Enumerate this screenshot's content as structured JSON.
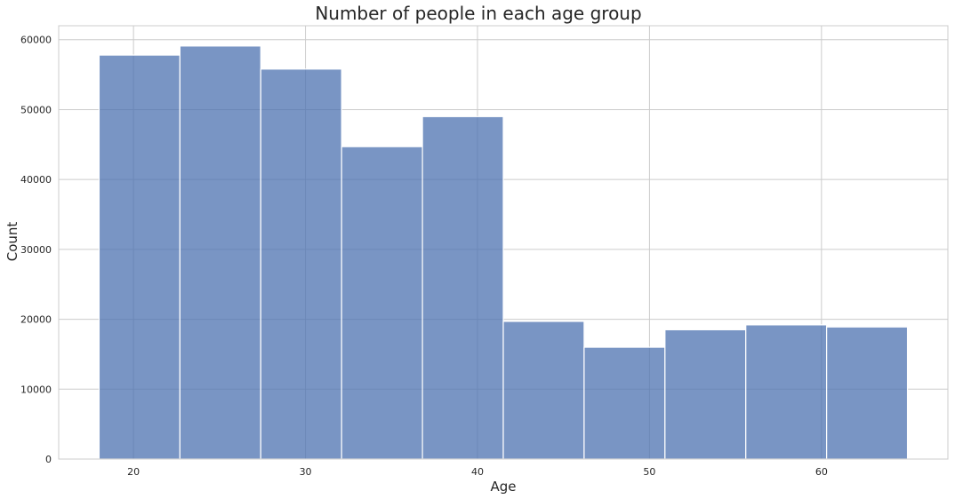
{
  "chart_data": {
    "type": "bar",
    "title": "Number of people in each age group",
    "xlabel": "Age",
    "ylabel": "Count",
    "bins": [
      {
        "start": 18.0,
        "end": 22.7,
        "count": 57800
      },
      {
        "start": 22.7,
        "end": 27.4,
        "count": 59100
      },
      {
        "start": 27.4,
        "end": 32.1,
        "count": 55800
      },
      {
        "start": 32.1,
        "end": 36.8,
        "count": 44700
      },
      {
        "start": 36.8,
        "end": 41.5,
        "count": 49000
      },
      {
        "start": 41.5,
        "end": 46.2,
        "count": 19700
      },
      {
        "start": 46.2,
        "end": 50.9,
        "count": 16000
      },
      {
        "start": 50.9,
        "end": 55.6,
        "count": 18500
      },
      {
        "start": 55.6,
        "end": 60.3,
        "count": 19200
      },
      {
        "start": 60.3,
        "end": 65.0,
        "count": 18900
      }
    ],
    "xticks": [
      20,
      30,
      40,
      50,
      60
    ],
    "yticks": [
      0,
      10000,
      20000,
      30000,
      40000,
      50000,
      60000
    ],
    "xlim": [
      15.65,
      67.35
    ],
    "ylim": [
      0,
      62000
    ],
    "grid": true,
    "colors": {
      "bar_fill": "#4c72b0",
      "bar_edge": "#ffffff",
      "grid": "#cccccc",
      "spine": "#cccccc",
      "text": "#262626"
    }
  }
}
